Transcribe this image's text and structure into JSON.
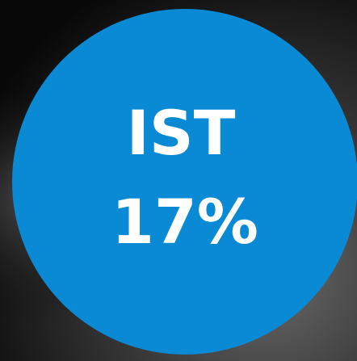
{
  "badge": {
    "label": "IST",
    "value": "17%"
  }
}
